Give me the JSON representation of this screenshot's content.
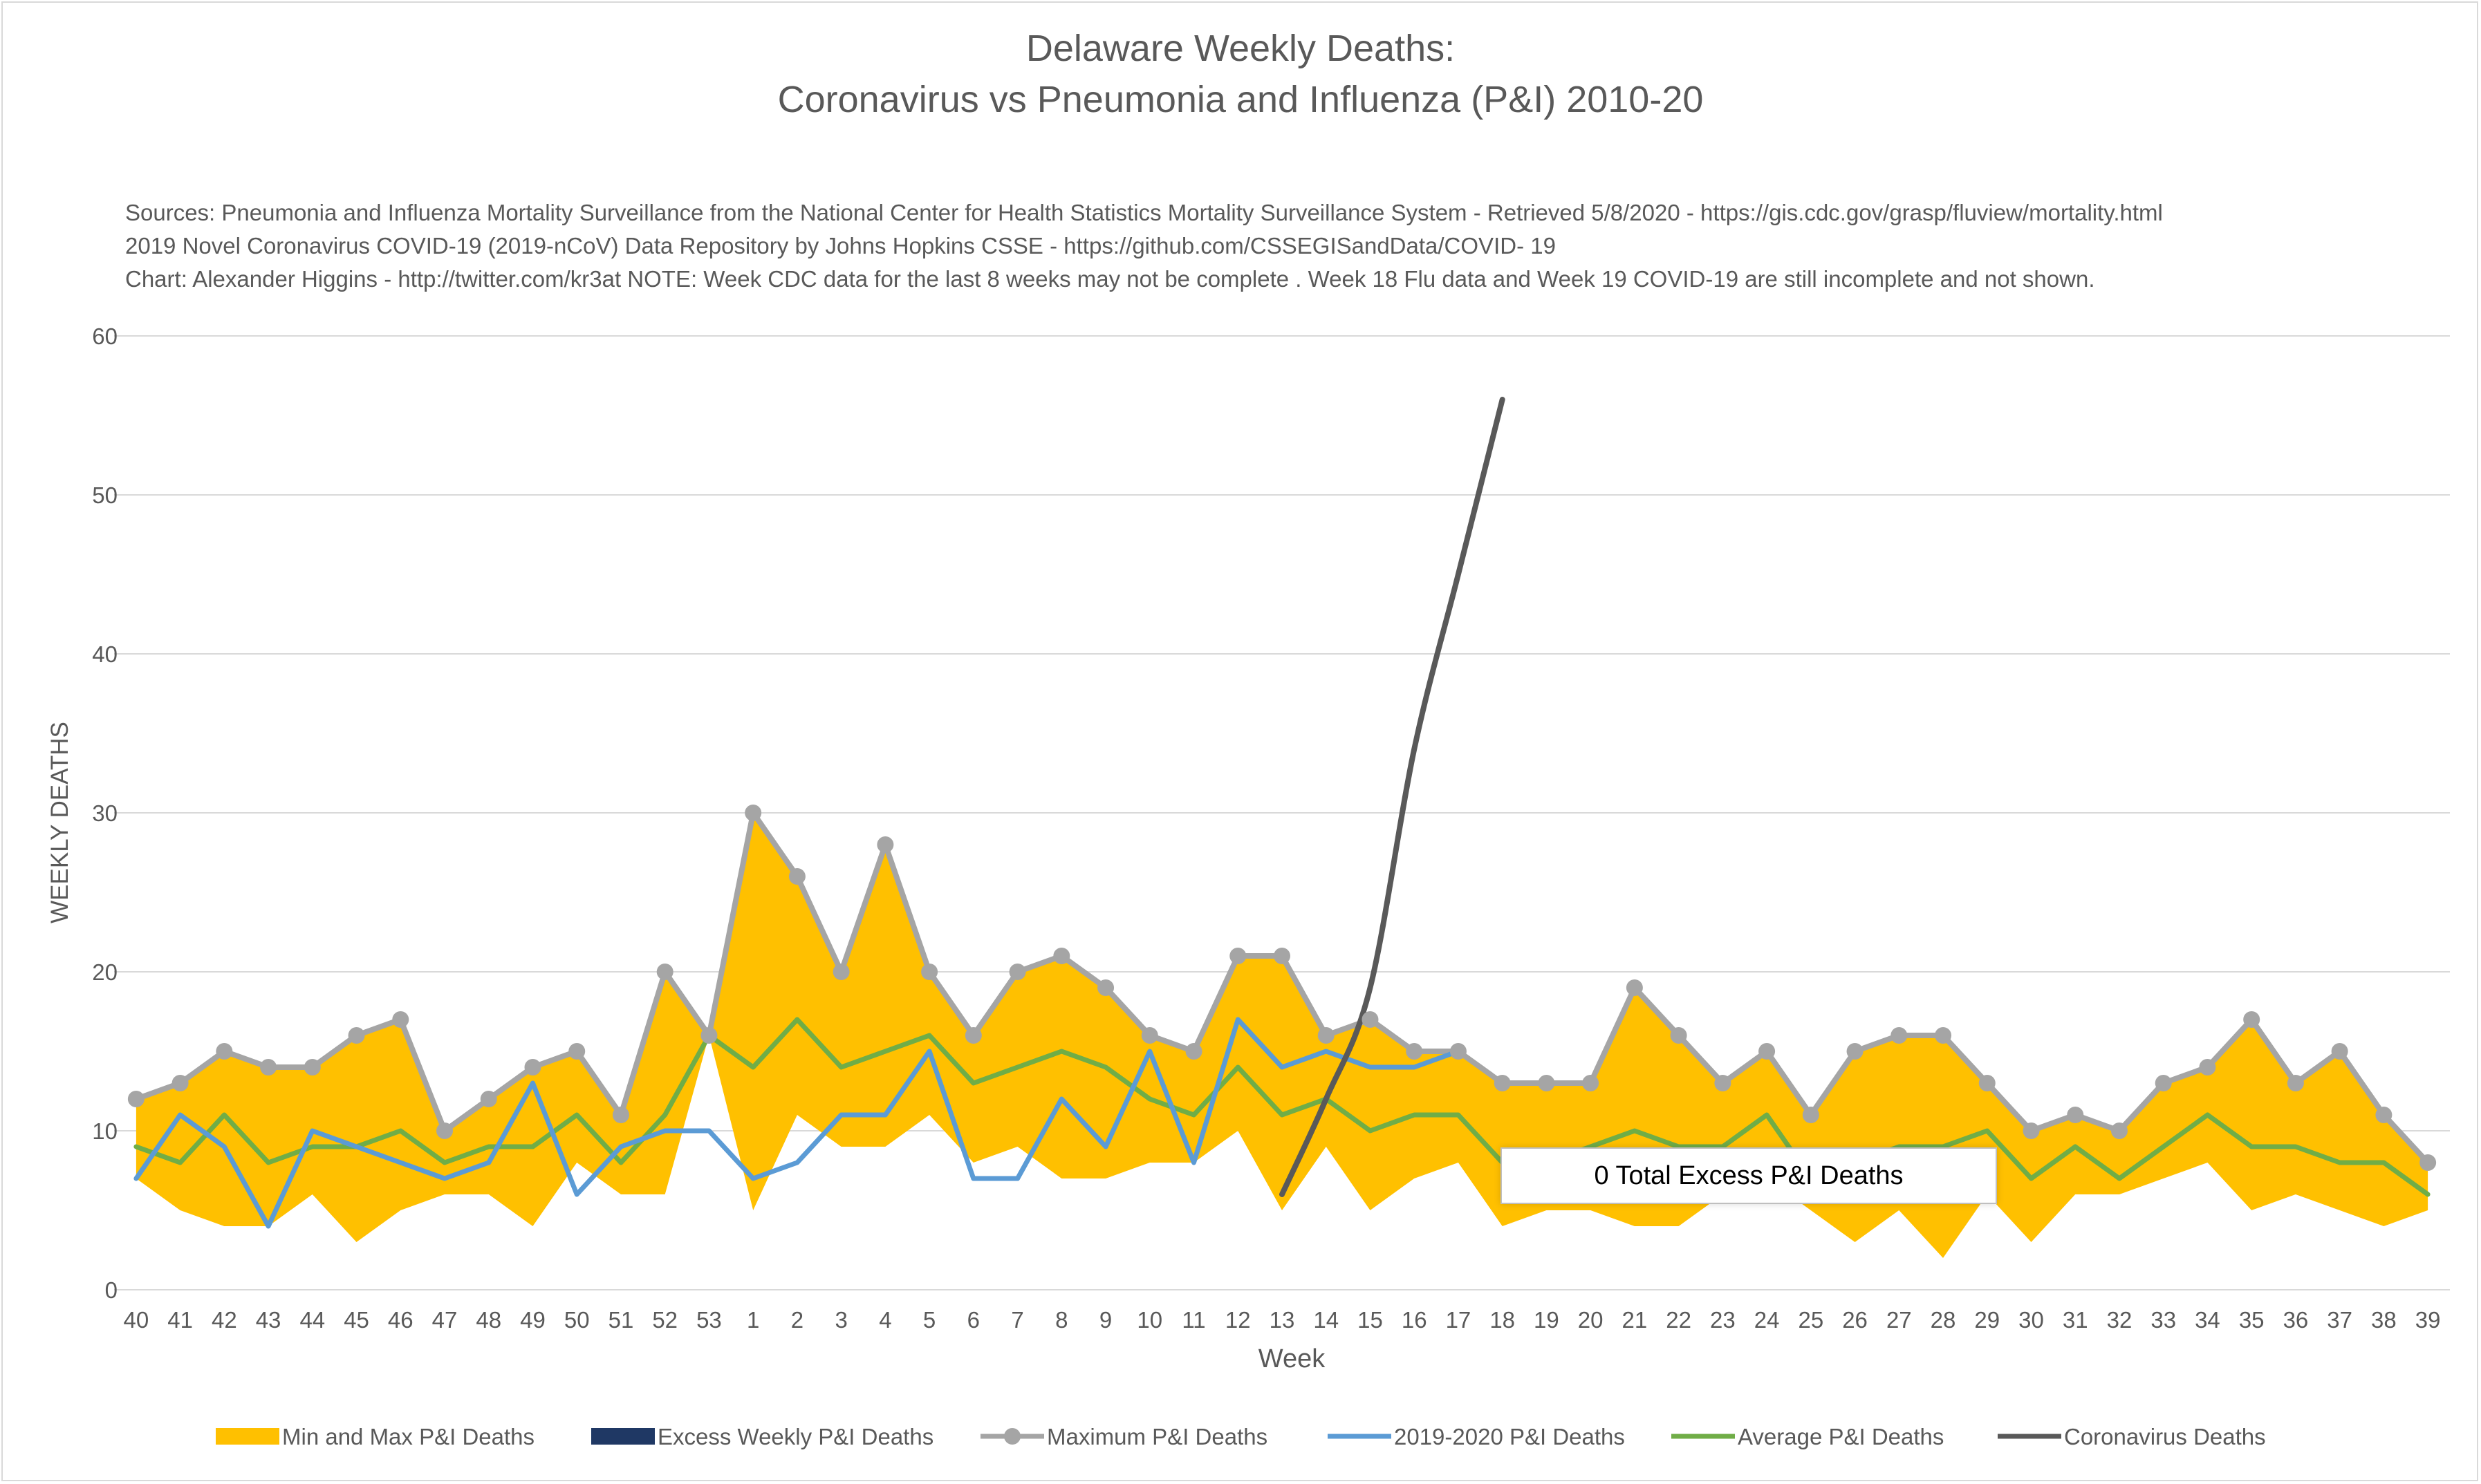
{
  "title_line1": "Delaware Weekly Deaths:",
  "title_line2": "Coronavirus vs Pneumonia and Influenza (P&I) 2010-20",
  "notes": [
    "Sources: Pneumonia and Influenza Mortality Surveillance from the National Center for Health Statistics Mortality Surveillance System - Retrieved 5/8/2020 - https://gis.cdc.gov/grasp/fluview/mortality.html",
    "2019 Novel Coronavirus COVID-19 (2019-nCoV) Data Repository by Johns Hopkins CSSE - https://github.com/CSSEGISandData/COVID- 19",
    "Chart: Alexander Higgins - http://twitter.com/kr3at   NOTE: Week CDC data for the last 8 weeks may not be complete . Week 18 Flu data and Week 19 COVID-19 are still incomplete and not shown."
  ],
  "callout": "0 Total Excess P&I Deaths",
  "colors": {
    "band": "#ffc000",
    "excess": "#1f3864",
    "maximum": "#a5a5a5",
    "current": "#5b9bd5",
    "average": "#70ad47",
    "coronavirus": "#595959",
    "grid": "#d9d9d9"
  },
  "chart_data": {
    "type": "line",
    "xlabel": "Week",
    "ylabel": "WEEKLY DEATHS",
    "ylim": [
      0,
      60
    ],
    "yticks": [
      0,
      10,
      20,
      30,
      40,
      50,
      60
    ],
    "grid": true,
    "legend_position": "bottom",
    "categories": [
      "40",
      "41",
      "42",
      "43",
      "44",
      "45",
      "46",
      "47",
      "48",
      "49",
      "50",
      "51",
      "52",
      "53",
      "1",
      "2",
      "3",
      "4",
      "5",
      "6",
      "7",
      "8",
      "9",
      "10",
      "11",
      "12",
      "13",
      "14",
      "15",
      "16",
      "17",
      "18",
      "19",
      "20",
      "21",
      "22",
      "23",
      "24",
      "25",
      "26",
      "27",
      "28",
      "29",
      "30",
      "31",
      "32",
      "33",
      "34",
      "35",
      "36",
      "37",
      "38",
      "39"
    ],
    "series": [
      {
        "name": "Min and Max P&I Deaths",
        "kind": "band",
        "lower": [
          7,
          5,
          4,
          4,
          6,
          3,
          5,
          6,
          6,
          4,
          8,
          6,
          6,
          16,
          5,
          11,
          9,
          9,
          11,
          8,
          9,
          7,
          7,
          8,
          8,
          10,
          5,
          9,
          5,
          7,
          8,
          4,
          5,
          5,
          4,
          4,
          6,
          7,
          5,
          3,
          5,
          2,
          6,
          3,
          6,
          6,
          7,
          8,
          5,
          6,
          5,
          4,
          5
        ],
        "upper": [
          12,
          13,
          15,
          14,
          14,
          16,
          17,
          10,
          12,
          14,
          15,
          11,
          20,
          16,
          30,
          26,
          20,
          28,
          20,
          16,
          20,
          21,
          19,
          16,
          15,
          21,
          21,
          16,
          17,
          15,
          15,
          13,
          13,
          13,
          19,
          16,
          13,
          15,
          11,
          15,
          16,
          16,
          13,
          10,
          11,
          10,
          13,
          14,
          17,
          13,
          15,
          11,
          8
        ]
      },
      {
        "name": "Excess Weekly P&I Deaths",
        "kind": "bar",
        "values": [
          0,
          0,
          0,
          0,
          0,
          0,
          0,
          0,
          0,
          0,
          0,
          0,
          0,
          0,
          0,
          0,
          0,
          0,
          0,
          0,
          0,
          0,
          0,
          0,
          0,
          0,
          0,
          0,
          0,
          0,
          0,
          0,
          0,
          0,
          0,
          0,
          0,
          0,
          0,
          0,
          0,
          0,
          0,
          0,
          0,
          0,
          0,
          0,
          0,
          0,
          0,
          0,
          0
        ]
      },
      {
        "name": "Maximum P&I Deaths",
        "kind": "line-markers",
        "values": [
          12,
          13,
          15,
          14,
          14,
          16,
          17,
          10,
          12,
          14,
          15,
          11,
          20,
          16,
          30,
          26,
          20,
          28,
          20,
          16,
          20,
          21,
          19,
          16,
          15,
          21,
          21,
          16,
          17,
          15,
          15,
          13,
          13,
          13,
          19,
          16,
          13,
          15,
          11,
          15,
          16,
          16,
          13,
          10,
          11,
          10,
          13,
          14,
          17,
          13,
          15,
          11,
          8
        ]
      },
      {
        "name": "2019-2020 P&I Deaths",
        "kind": "line",
        "values": [
          7,
          11,
          9,
          4,
          10,
          9,
          8,
          7,
          8,
          13,
          6,
          9,
          10,
          10,
          7,
          8,
          11,
          11,
          15,
          7,
          7,
          12,
          9,
          15,
          8,
          17,
          14,
          15,
          14,
          14,
          15,
          null,
          null,
          null,
          null,
          null,
          null,
          null,
          null,
          null,
          null,
          null,
          null,
          null,
          null,
          null,
          null,
          null,
          null,
          null,
          null,
          null,
          null
        ]
      },
      {
        "name": "Average P&I Deaths",
        "kind": "line",
        "values": [
          9,
          8,
          11,
          8,
          9,
          9,
          10,
          8,
          9,
          9,
          11,
          8,
          11,
          16,
          14,
          17,
          14,
          15,
          16,
          13,
          14,
          15,
          14,
          12,
          11,
          14,
          11,
          12,
          10,
          11,
          11,
          8,
          8,
          9,
          10,
          9,
          9,
          11,
          7,
          8,
          9,
          9,
          10,
          7,
          9,
          7,
          9,
          11,
          9,
          9,
          8,
          8,
          6
        ]
      },
      {
        "name": "Coronavirus Deaths",
        "kind": "line-smooth",
        "values": [
          null,
          null,
          null,
          null,
          null,
          null,
          null,
          null,
          null,
          null,
          null,
          null,
          null,
          null,
          null,
          null,
          null,
          null,
          null,
          null,
          null,
          null,
          null,
          null,
          null,
          null,
          6,
          12,
          19,
          34,
          45,
          56,
          null,
          null,
          null,
          null,
          null,
          null,
          null,
          null,
          null,
          null,
          null,
          null,
          null,
          null,
          null,
          null,
          null,
          null,
          null,
          null,
          null
        ]
      }
    ]
  }
}
